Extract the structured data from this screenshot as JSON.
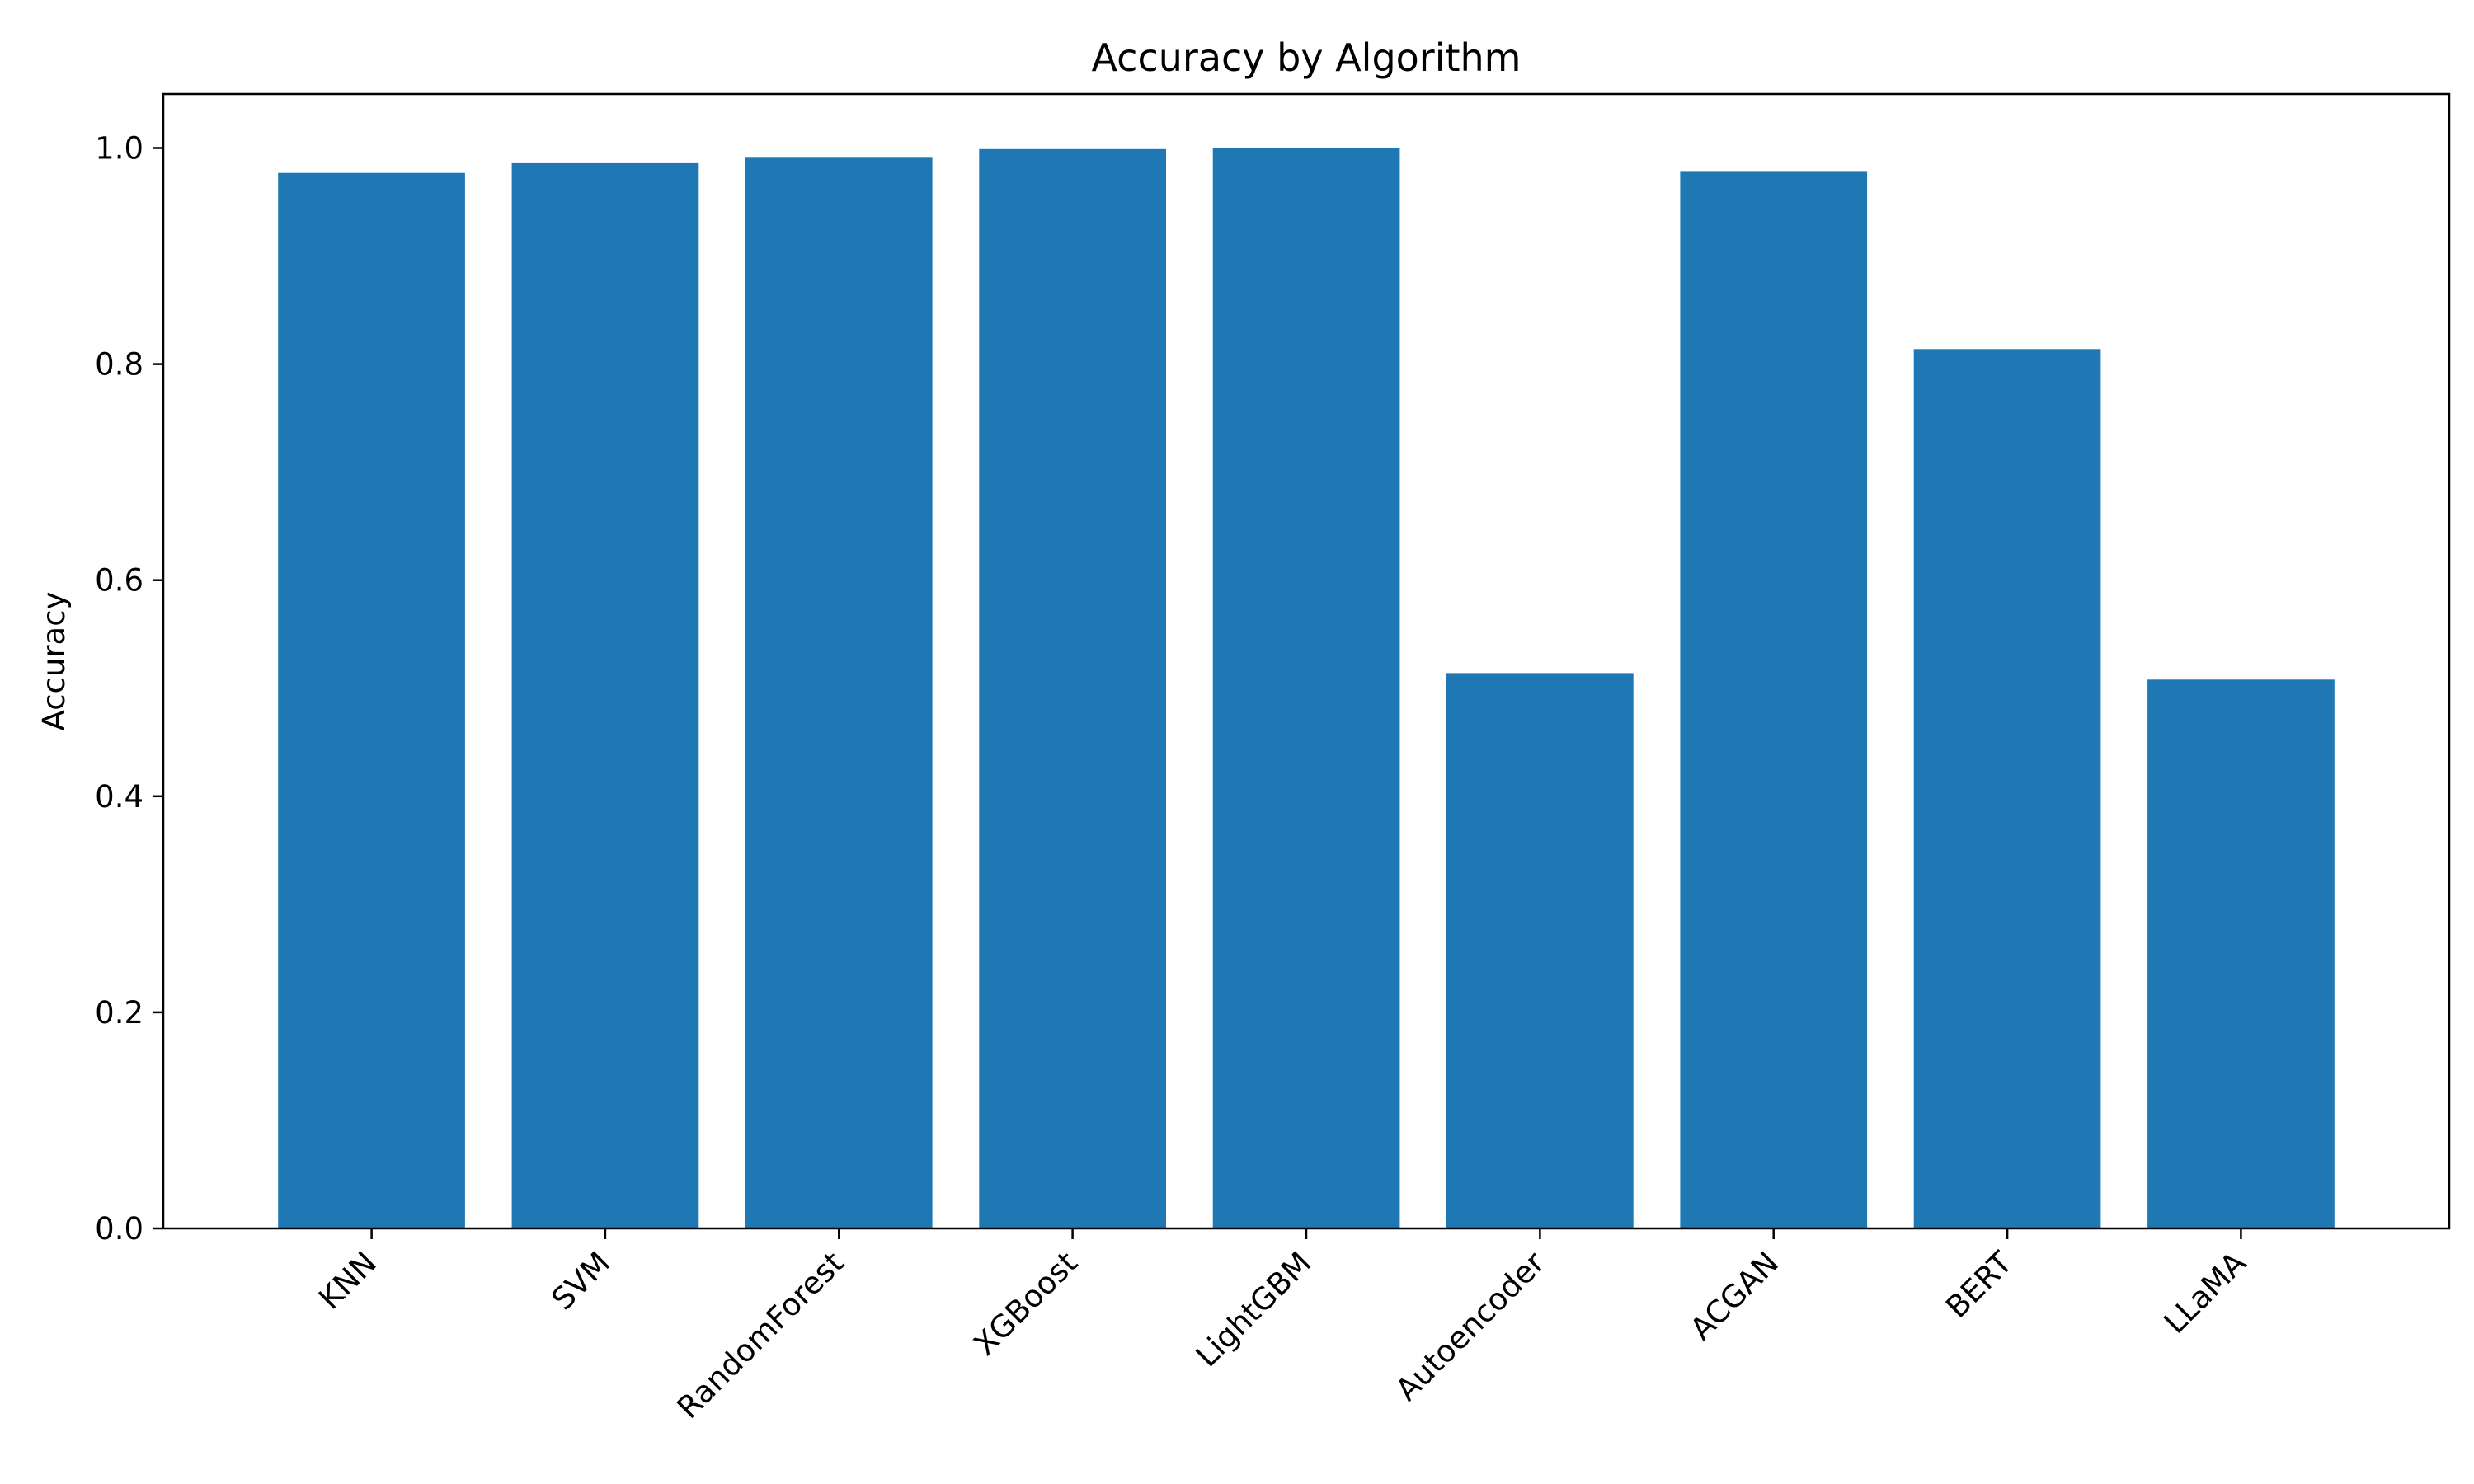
{
  "chart_data": {
    "type": "bar",
    "title": "Accuracy by Algorithm",
    "xlabel": "",
    "ylabel": "Accuracy",
    "categories": [
      "KNN",
      "SVM",
      "RandomForest",
      "XGBoost",
      "LightGBM",
      "Autoencoder",
      "ACGAN",
      "BERT",
      "LLaMA"
    ],
    "values": [
      0.977,
      0.986,
      0.991,
      0.999,
      1.0,
      0.514,
      0.978,
      0.814,
      0.508
    ],
    "ylim": [
      0,
      1.05
    ],
    "yticks": [
      0.0,
      0.2,
      0.4,
      0.6,
      0.8,
      1.0
    ],
    "ytick_labels": [
      "0.0",
      "0.2",
      "0.4",
      "0.6",
      "0.8",
      "1.0"
    ],
    "bar_color": "#1f77b4",
    "grid": false,
    "legend": "none"
  }
}
